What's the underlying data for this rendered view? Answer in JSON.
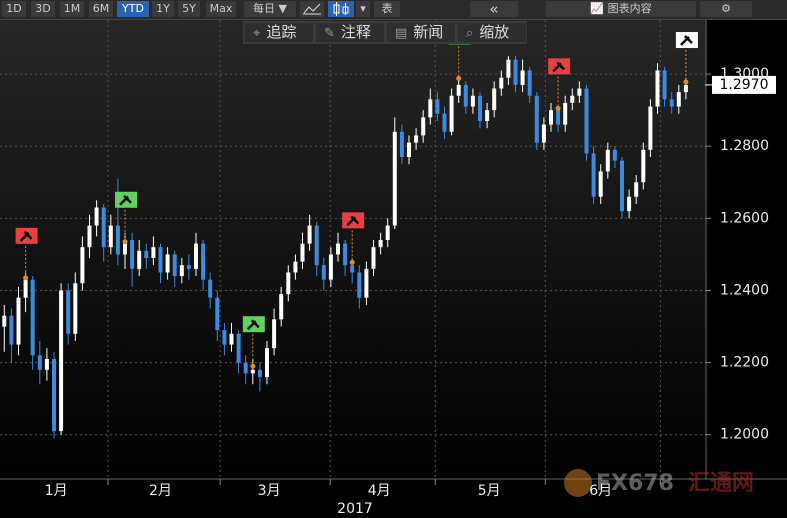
{
  "toolbar": {
    "ranges": [
      "1D",
      "3D",
      "1M",
      "6M",
      "YTD",
      "1Y",
      "5Y",
      "Max"
    ],
    "active": "YTD",
    "period": "每日 ▼",
    "table": "表",
    "back": "«",
    "content": "图表内容",
    "tools": [
      "追踪",
      "注释",
      "新闻",
      "缩放"
    ]
  },
  "watermark": {
    "logo": "FX678",
    "name": "汇通网"
  },
  "chart_data": {
    "type": "candlestick",
    "up_color": "#ffffff",
    "down_color": "#3b8be0",
    "ylim": [
      1.188,
      1.315
    ],
    "yticks": [
      {
        "value": 1.2,
        "label": "1.2000"
      },
      {
        "value": 1.22,
        "label": "1.2200"
      },
      {
        "value": 1.24,
        "label": "1.2400"
      },
      {
        "value": 1.26,
        "label": "1.2600"
      },
      {
        "value": 1.28,
        "label": "1.2800"
      },
      {
        "value": 1.3,
        "label": "1.3000"
      }
    ],
    "grid": true,
    "xticks": [
      {
        "value": 7.3,
        "label": "1月"
      },
      {
        "value": 22,
        "label": "2月"
      },
      {
        "value": 37.3,
        "label": "3月"
      },
      {
        "value": 52.8,
        "label": "4月"
      },
      {
        "value": 68.3,
        "label": "5月"
      },
      {
        "value": 84,
        "label": "6月"
      }
    ],
    "month_breaks": [
      14.6,
      30.4,
      45.9,
      60.7,
      76.2,
      92.4
    ],
    "year_label": "2017",
    "last_price": {
      "value": 1.297,
      "label": "1.2970"
    },
    "signals": [
      {
        "index": 3,
        "value": 1.2435,
        "color": "#e84040"
      },
      {
        "index": 17,
        "value": 1.2535,
        "color": "#5fd35f"
      },
      {
        "index": 35,
        "value": 1.219,
        "color": "#5fd35f"
      },
      {
        "index": 49,
        "value": 1.2478,
        "color": "#e84040"
      },
      {
        "index": 64,
        "value": 1.2988,
        "color": "#5fd35f"
      },
      {
        "index": 78,
        "value": 1.2905,
        "color": "#e84040"
      },
      {
        "index": 96,
        "value": 1.2978,
        "color": "#ffffff"
      }
    ],
    "ohlc": [
      [
        1.23,
        1.236,
        1.223,
        1.233
      ],
      [
        1.233,
        1.235,
        1.22,
        1.225
      ],
      [
        1.225,
        1.241,
        1.222,
        1.238
      ],
      [
        1.238,
        1.245,
        1.234,
        1.243
      ],
      [
        1.243,
        1.244,
        1.218,
        1.222
      ],
      [
        1.222,
        1.226,
        1.214,
        1.218
      ],
      [
        1.218,
        1.224,
        1.215,
        1.221
      ],
      [
        1.221,
        1.223,
        1.199,
        1.201
      ],
      [
        1.201,
        1.242,
        1.2,
        1.24
      ],
      [
        1.24,
        1.242,
        1.225,
        1.228
      ],
      [
        1.228,
        1.245,
        1.226,
        1.242
      ],
      [
        1.242,
        1.255,
        1.24,
        1.252
      ],
      [
        1.252,
        1.261,
        1.249,
        1.258
      ],
      [
        1.258,
        1.265,
        1.255,
        1.263
      ],
      [
        1.263,
        1.264,
        1.248,
        1.252
      ],
      [
        1.252,
        1.261,
        1.25,
        1.258
      ],
      [
        1.258,
        1.271,
        1.247,
        1.25
      ],
      [
        1.25,
        1.256,
        1.246,
        1.254
      ],
      [
        1.254,
        1.256,
        1.241,
        1.246
      ],
      [
        1.246,
        1.254,
        1.244,
        1.251
      ],
      [
        1.251,
        1.253,
        1.246,
        1.249
      ],
      [
        1.249,
        1.255,
        1.247,
        1.252
      ],
      [
        1.252,
        1.253,
        1.242,
        1.245
      ],
      [
        1.245,
        1.252,
        1.243,
        1.25
      ],
      [
        1.25,
        1.251,
        1.241,
        1.244
      ],
      [
        1.244,
        1.249,
        1.242,
        1.247
      ],
      [
        1.247,
        1.25,
        1.243,
        1.246
      ],
      [
        1.246,
        1.256,
        1.244,
        1.253
      ],
      [
        1.253,
        1.254,
        1.24,
        1.243
      ],
      [
        1.243,
        1.245,
        1.235,
        1.238
      ],
      [
        1.238,
        1.24,
        1.226,
        1.229
      ],
      [
        1.229,
        1.231,
        1.222,
        1.225
      ],
      [
        1.225,
        1.231,
        1.223,
        1.228
      ],
      [
        1.228,
        1.229,
        1.217,
        1.22
      ],
      [
        1.22,
        1.222,
        1.214,
        1.217
      ],
      [
        1.217,
        1.221,
        1.214,
        1.218
      ],
      [
        1.218,
        1.22,
        1.212,
        1.216
      ],
      [
        1.216,
        1.226,
        1.214,
        1.224
      ],
      [
        1.224,
        1.235,
        1.222,
        1.232
      ],
      [
        1.232,
        1.241,
        1.23,
        1.239
      ],
      [
        1.239,
        1.247,
        1.237,
        1.245
      ],
      [
        1.245,
        1.25,
        1.243,
        1.248
      ],
      [
        1.248,
        1.256,
        1.246,
        1.253
      ],
      [
        1.253,
        1.261,
        1.251,
        1.258
      ],
      [
        1.258,
        1.259,
        1.244,
        1.247
      ],
      [
        1.247,
        1.249,
        1.24,
        1.243
      ],
      [
        1.243,
        1.252,
        1.241,
        1.25
      ],
      [
        1.25,
        1.256,
        1.248,
        1.253
      ],
      [
        1.253,
        1.254,
        1.244,
        1.247
      ],
      [
        1.247,
        1.249,
        1.242,
        1.245
      ],
      [
        1.245,
        1.247,
        1.235,
        1.238
      ],
      [
        1.238,
        1.248,
        1.236,
        1.246
      ],
      [
        1.246,
        1.254,
        1.244,
        1.252
      ],
      [
        1.252,
        1.256,
        1.25,
        1.254
      ],
      [
        1.254,
        1.26,
        1.252,
        1.258
      ],
      [
        1.258,
        1.288,
        1.257,
        1.284
      ],
      [
        1.284,
        1.286,
        1.275,
        1.277
      ],
      [
        1.277,
        1.283,
        1.275,
        1.281
      ],
      [
        1.281,
        1.285,
        1.279,
        1.283
      ],
      [
        1.283,
        1.29,
        1.281,
        1.288
      ],
      [
        1.288,
        1.296,
        1.286,
        1.293
      ],
      [
        1.293,
        1.295,
        1.287,
        1.289
      ],
      [
        1.289,
        1.291,
        1.282,
        1.284
      ],
      [
        1.284,
        1.296,
        1.283,
        1.294
      ],
      [
        1.294,
        1.299,
        1.292,
        1.297
      ],
      [
        1.297,
        1.298,
        1.289,
        1.291
      ],
      [
        1.291,
        1.296,
        1.289,
        1.294
      ],
      [
        1.294,
        1.295,
        1.285,
        1.287
      ],
      [
        1.287,
        1.292,
        1.285,
        1.29
      ],
      [
        1.29,
        1.298,
        1.288,
        1.296
      ],
      [
        1.296,
        1.301,
        1.294,
        1.299
      ],
      [
        1.299,
        1.305,
        1.297,
        1.304
      ],
      [
        1.304,
        1.305,
        1.295,
        1.297
      ],
      [
        1.297,
        1.304,
        1.295,
        1.301
      ],
      [
        1.301,
        1.302,
        1.292,
        1.294
      ],
      [
        1.294,
        1.295,
        1.279,
        1.281
      ],
      [
        1.281,
        1.288,
        1.279,
        1.286
      ],
      [
        1.286,
        1.292,
        1.284,
        1.29
      ],
      [
        1.29,
        1.291,
        1.284,
        1.286
      ],
      [
        1.286,
        1.294,
        1.284,
        1.292
      ],
      [
        1.292,
        1.296,
        1.29,
        1.294
      ],
      [
        1.294,
        1.298,
        1.292,
        1.296
      ],
      [
        1.296,
        1.297,
        1.276,
        1.278
      ],
      [
        1.278,
        1.28,
        1.264,
        1.266
      ],
      [
        1.266,
        1.275,
        1.264,
        1.273
      ],
      [
        1.273,
        1.281,
        1.271,
        1.279
      ],
      [
        1.279,
        1.28,
        1.274,
        1.276
      ],
      [
        1.276,
        1.277,
        1.26,
        1.262
      ],
      [
        1.262,
        1.268,
        1.26,
        1.266
      ],
      [
        1.266,
        1.272,
        1.264,
        1.27
      ],
      [
        1.27,
        1.281,
        1.268,
        1.279
      ],
      [
        1.279,
        1.293,
        1.277,
        1.291
      ],
      [
        1.291,
        1.303,
        1.289,
        1.301
      ],
      [
        1.301,
        1.302,
        1.291,
        1.293
      ],
      [
        1.293,
        1.295,
        1.289,
        1.291
      ],
      [
        1.291,
        1.297,
        1.289,
        1.295
      ],
      [
        1.295,
        1.299,
        1.293,
        1.297
      ]
    ]
  }
}
